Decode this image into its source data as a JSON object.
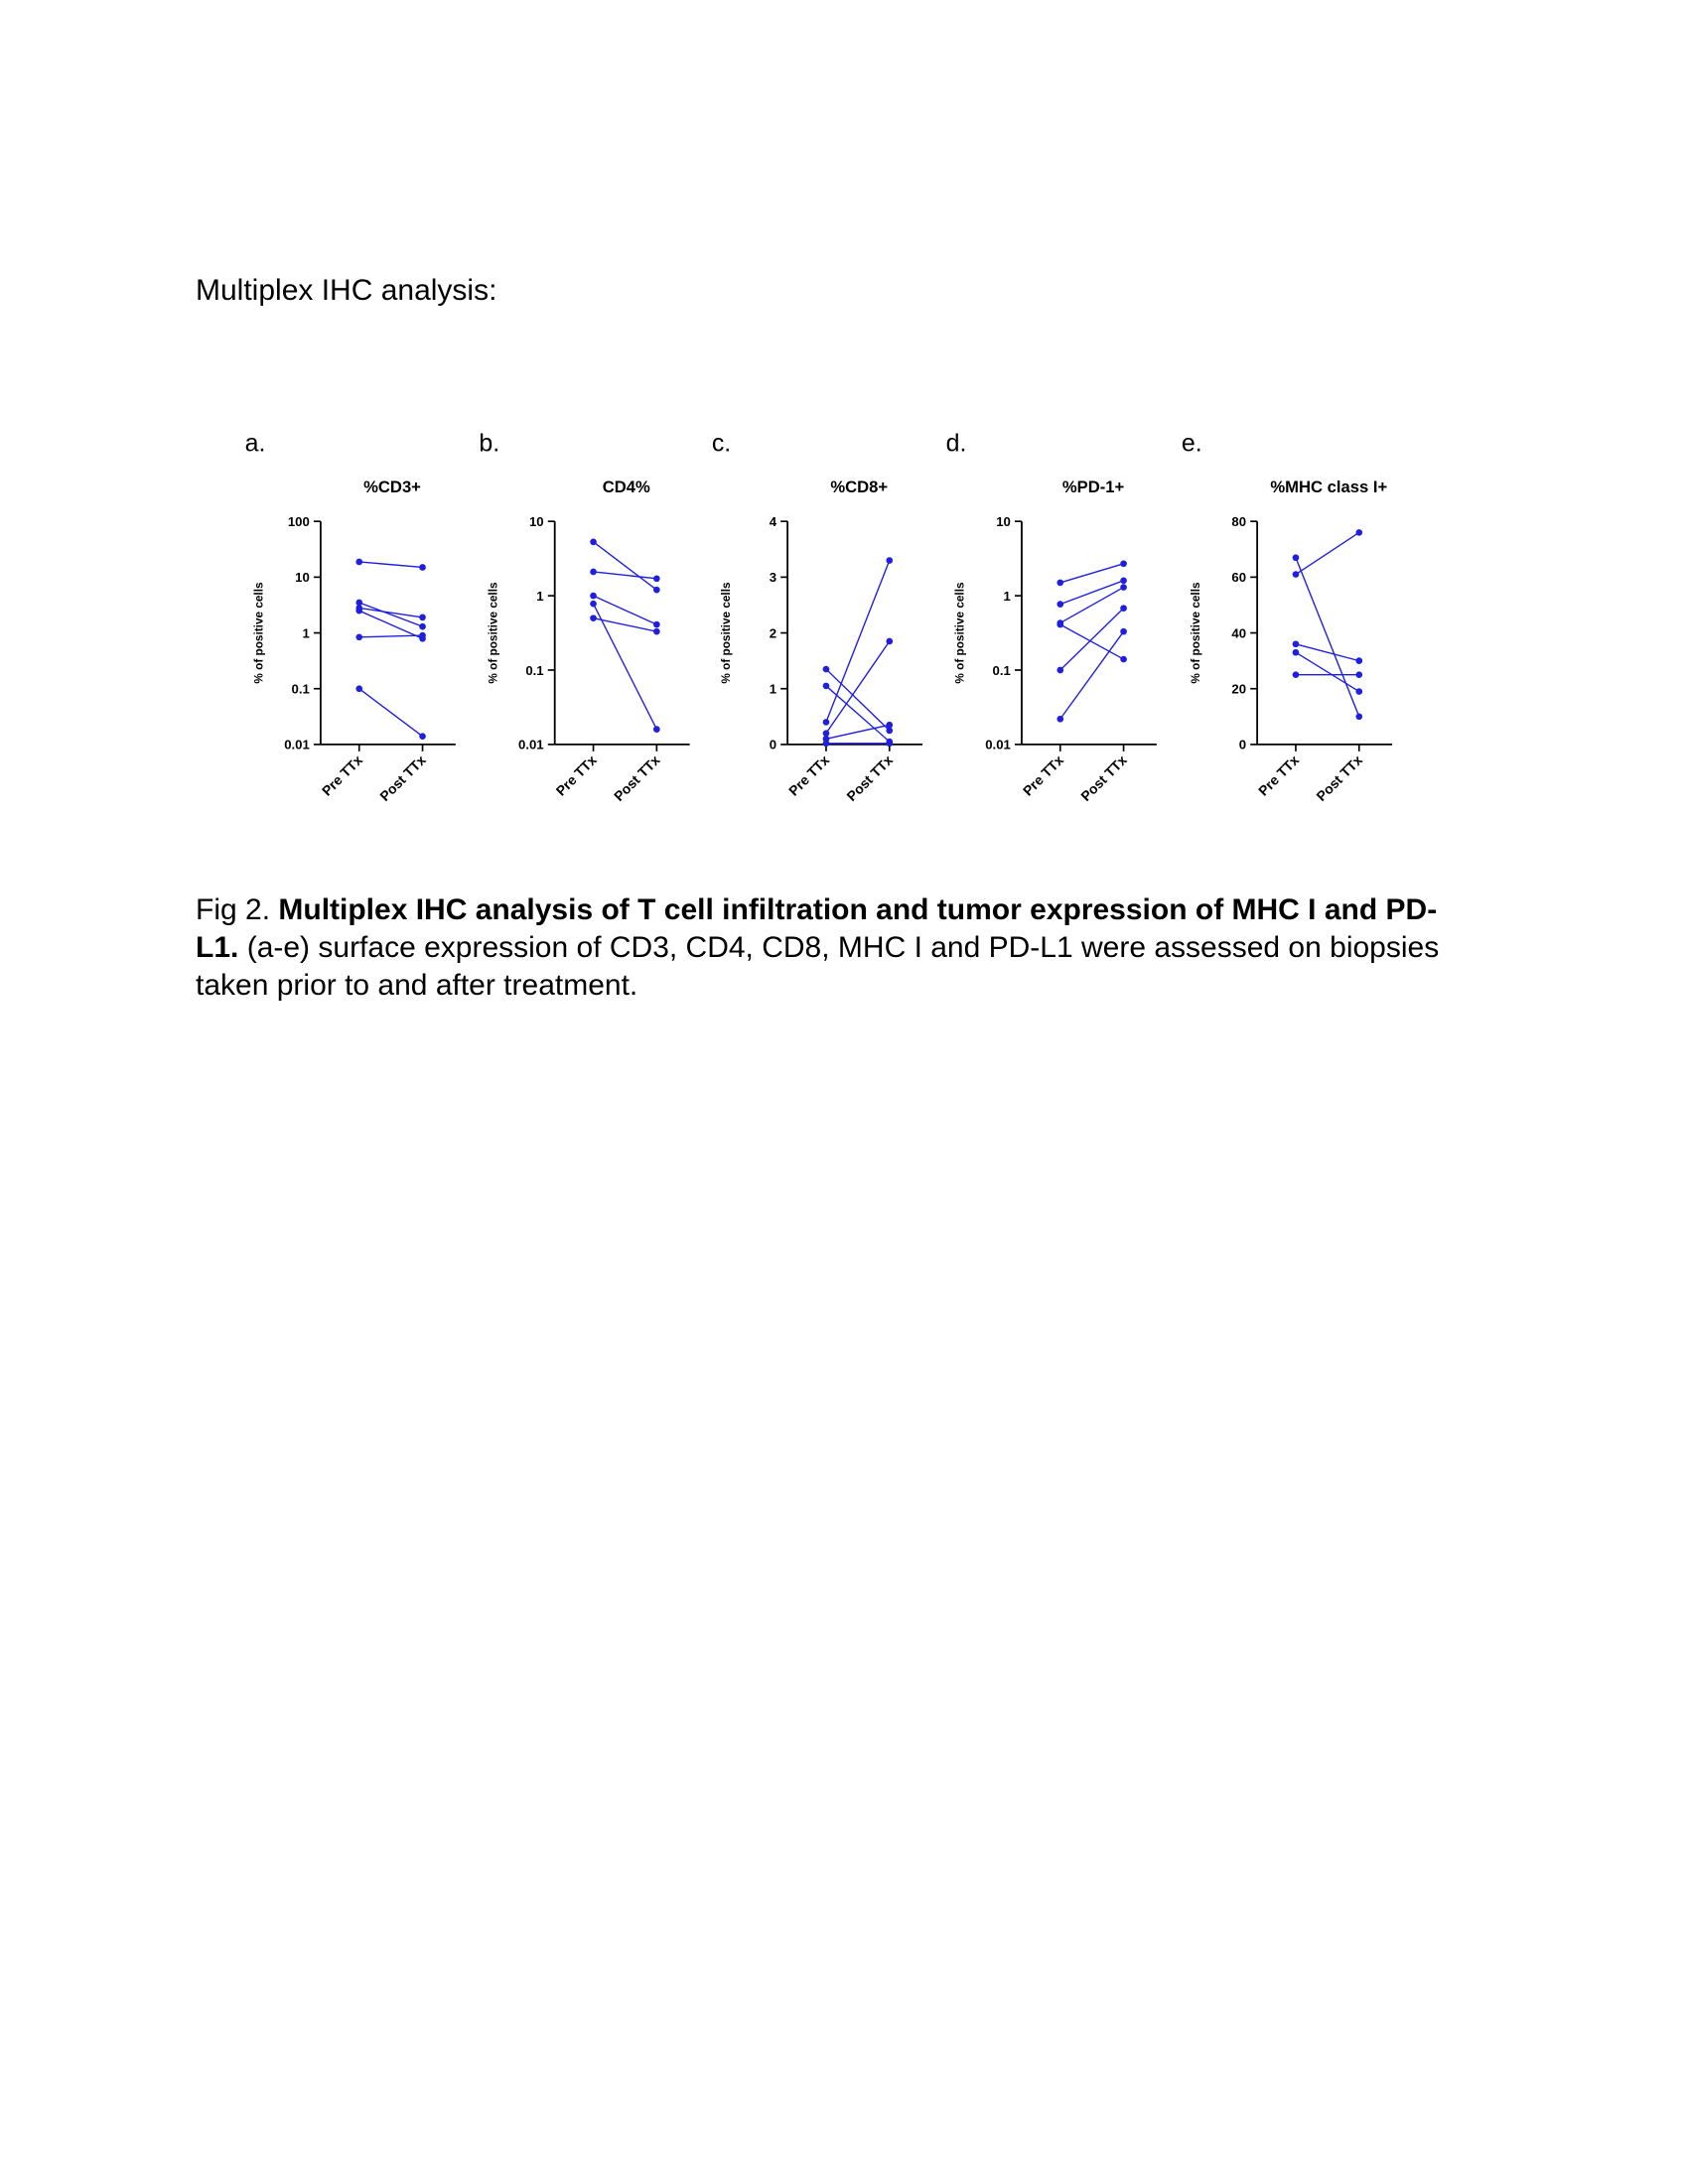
{
  "header": {
    "title": "Multiplex IHC analysis:"
  },
  "chart_data": [
    {
      "type": "line",
      "panel": "a.",
      "title": "%CD3+",
      "ylabel": "% of positive cells",
      "log_scale": true,
      "color": "#1f1fe0",
      "categories": [
        "Pre TTx",
        "Post TTx"
      ],
      "ylim": [
        0.01,
        100
      ],
      "yticks": [
        0.01,
        0.1,
        1,
        10,
        100
      ],
      "series": [
        {
          "values": [
            18.8,
            15
          ]
        },
        {
          "values": [
            3.5,
            1.3
          ]
        },
        {
          "values": [
            2.8,
            1.9
          ]
        },
        {
          "values": [
            2.5,
            0.79
          ]
        },
        {
          "values": [
            0.84,
            0.9
          ]
        },
        {
          "values": [
            0.1,
            0.014
          ]
        }
      ]
    },
    {
      "type": "line",
      "panel": "b.",
      "title": "CD4%",
      "ylabel": "% of positive cells",
      "log_scale": true,
      "color": "#1f1fe0",
      "categories": [
        "Pre TTx",
        "Post TTx"
      ],
      "ylim": [
        0.01,
        10
      ],
      "yticks": [
        0.01,
        0.1,
        1,
        10
      ],
      "series": [
        {
          "values": [
            5.3,
            1.2
          ]
        },
        {
          "values": [
            2.1,
            1.7
          ]
        },
        {
          "values": [
            1.0,
            0.41
          ]
        },
        {
          "values": [
            0.78,
            0.016
          ]
        },
        {
          "values": [
            0.5,
            0.33
          ]
        }
      ]
    },
    {
      "type": "line",
      "panel": "c.",
      "title": "%CD8+",
      "ylabel": "% of positive cells",
      "log_scale": false,
      "color": "#1f1fe0",
      "categories": [
        "Pre TTx",
        "Post TTx"
      ],
      "ylim": [
        0,
        4
      ],
      "yticks": [
        0,
        1,
        2,
        3,
        4
      ],
      "series": [
        {
          "values": [
            1.35,
            0.25
          ]
        },
        {
          "values": [
            1.05,
            0.05
          ]
        },
        {
          "values": [
            0.4,
            3.3
          ]
        },
        {
          "values": [
            0.2,
            1.85
          ]
        },
        {
          "values": [
            0.1,
            0.35
          ]
        },
        {
          "values": [
            0.02,
            0.02
          ]
        }
      ]
    },
    {
      "type": "line",
      "panel": "d.",
      "title": "%PD-1+",
      "ylabel": "% of positive cells",
      "log_scale": true,
      "color": "#1f1fe0",
      "categories": [
        "Pre TTx",
        "Post TTx"
      ],
      "ylim": [
        0.01,
        10
      ],
      "yticks": [
        0.01,
        0.1,
        1,
        10
      ],
      "series": [
        {
          "values": [
            1.5,
            2.7
          ]
        },
        {
          "values": [
            0.77,
            1.6
          ]
        },
        {
          "values": [
            0.43,
            1.3
          ]
        },
        {
          "values": [
            0.41,
            0.14
          ]
        },
        {
          "values": [
            0.1,
            0.68
          ]
        },
        {
          "values": [
            0.022,
            0.33
          ]
        }
      ]
    },
    {
      "type": "line",
      "panel": "e.",
      "title": "%MHC class I+",
      "ylabel": "% of positive cells",
      "log_scale": false,
      "color": "#1f1fe0",
      "categories": [
        "Pre TTx",
        "Post TTx"
      ],
      "ylim": [
        0,
        80
      ],
      "yticks": [
        0,
        20,
        40,
        60,
        80
      ],
      "series": [
        {
          "values": [
            67,
            10
          ]
        },
        {
          "values": [
            61,
            76
          ]
        },
        {
          "values": [
            36,
            30
          ]
        },
        {
          "values": [
            33,
            19
          ]
        },
        {
          "values": [
            25,
            25
          ]
        }
      ]
    }
  ],
  "caption": {
    "label": "Fig 2.",
    "title": "Multiplex IHC analysis of T cell infiltration and tumor expression of MHC I and PD-L1.",
    "text": "(a-e) surface expression of CD3, CD4, CD8, MHC I and PD-L1 were assessed on biopsies taken prior to and after treatment."
  }
}
